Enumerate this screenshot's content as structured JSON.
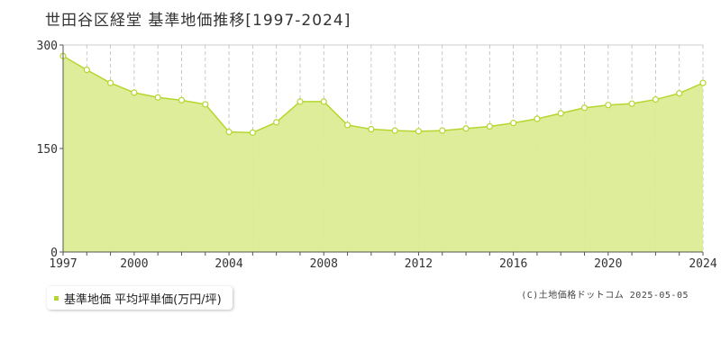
{
  "title": "世田谷区経堂 基準地価推移[1997-2024]",
  "legend": {
    "label": "基準地価 平均坪単価(万円/坪)"
  },
  "credit": "(C)土地価格ドットコム 2025-05-05",
  "colors": {
    "fill": "#dcec94",
    "line": "#b5d62e",
    "grid": "#bbbbbb",
    "axis": "#555555"
  },
  "chart_data": {
    "type": "area",
    "x": [
      1997,
      1998,
      1999,
      2000,
      2001,
      2002,
      2003,
      2004,
      2005,
      2006,
      2007,
      2008,
      2009,
      2010,
      2011,
      2012,
      2013,
      2014,
      2015,
      2016,
      2017,
      2018,
      2019,
      2020,
      2021,
      2022,
      2023,
      2024
    ],
    "values": [
      284,
      264,
      245,
      231,
      224,
      220,
      214,
      174,
      173,
      188,
      218,
      218,
      184,
      178,
      176,
      175,
      176,
      179,
      182,
      187,
      193,
      201,
      209,
      213,
      215,
      221,
      230,
      245
    ],
    "ylim": [
      0,
      300
    ],
    "yticks": [
      0,
      150,
      300
    ],
    "xticks": [
      1997,
      2000,
      2004,
      2008,
      2012,
      2016,
      2020,
      2024
    ],
    "grid": true,
    "legend_position": "bottom-left"
  }
}
